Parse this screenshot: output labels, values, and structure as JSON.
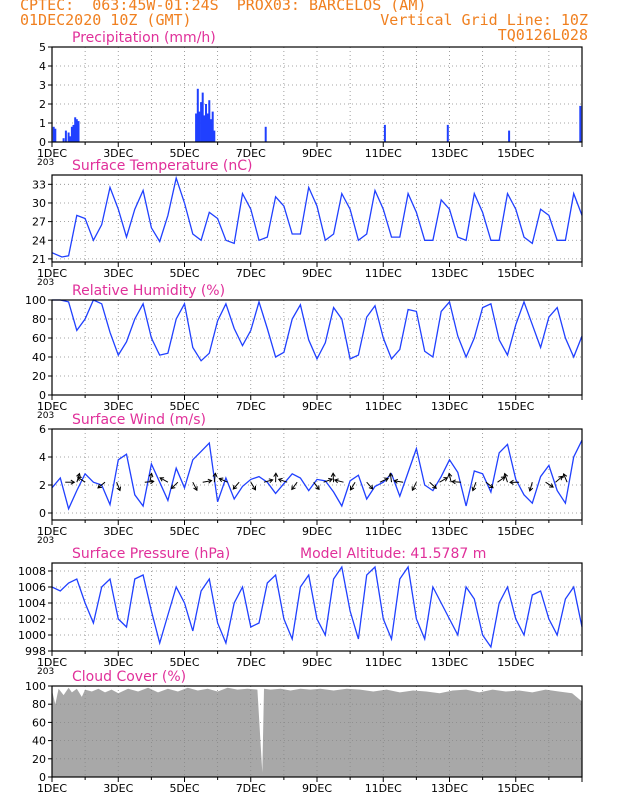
{
  "header": {
    "line1_left": "CPTEC:  063:45W-01:24S  PROX03: BARCELOS (AM)",
    "line2_left": "01DEC2020 10Z (GMT)",
    "line2_right": "Vertical Grid Line: 10Z",
    "line3_right": "TQ0126L028",
    "color": "#f08020"
  },
  "colors": {
    "line": "#2040ff",
    "bar": "#2040ff",
    "cloud": "#a8a8a8",
    "title": "#e0309a",
    "vgrid": "#ff8000"
  },
  "x_tick_labels": [
    "1DEC",
    "3DEC",
    "5DEC",
    "7DEC",
    "9DEC",
    "11DEC",
    "13DEC",
    "15DEC"
  ],
  "x_stub_label": "203",
  "chart_data": [
    {
      "id": "precip",
      "type": "bar",
      "title": "Precipitation (mm/h)",
      "ylim": [
        0,
        5
      ],
      "yticks": [
        0,
        1,
        2,
        3,
        4,
        5
      ],
      "x_unit": "days since 01DEC 00Z",
      "x": [
        0.05,
        0.1,
        0.35,
        0.42,
        0.5,
        0.55,
        0.6,
        0.65,
        0.7,
        0.75,
        0.8,
        4.35,
        4.4,
        4.45,
        4.5,
        4.55,
        4.6,
        4.65,
        4.7,
        4.75,
        4.8,
        4.85,
        4.9,
        6.45,
        10.05,
        11.95,
        13.8,
        15.95
      ],
      "values": [
        0.8,
        0.7,
        0.2,
        0.6,
        0.5,
        0.3,
        0.8,
        0.9,
        1.3,
        1.2,
        1.1,
        1.5,
        2.8,
        1.6,
        2.1,
        2.6,
        1.4,
        2.0,
        1.5,
        2.2,
        1.2,
        1.6,
        0.6,
        0.8,
        0.9,
        0.9,
        0.6,
        1.9
      ]
    },
    {
      "id": "temp",
      "type": "line",
      "title": "Surface Temperature (nC)",
      "ylim": [
        20.5,
        34.5
      ],
      "yticks": [
        21,
        24,
        27,
        30,
        33
      ],
      "x": [
        0,
        0.3,
        0.5,
        0.75,
        1.0,
        1.25,
        1.5,
        1.75,
        2.0,
        2.25,
        2.5,
        2.75,
        3.0,
        3.25,
        3.5,
        3.75,
        4.0,
        4.25,
        4.5,
        4.75,
        5.0,
        5.25,
        5.5,
        5.75,
        6.0,
        6.25,
        6.5,
        6.75,
        7.0,
        7.25,
        7.5,
        7.75,
        8.0,
        8.25,
        8.5,
        8.75,
        9.0,
        9.25,
        9.5,
        9.75,
        10.0,
        10.25,
        10.5,
        10.75,
        11.0,
        11.25,
        11.5,
        11.75,
        12.0,
        12.25,
        12.5,
        12.75,
        13.0,
        13.25,
        13.5,
        13.75,
        14.0,
        14.25,
        14.5,
        14.75,
        15.0,
        15.25,
        15.5,
        15.75,
        16.0
      ],
      "values": [
        22,
        21.3,
        21.5,
        28,
        27.5,
        24,
        26.5,
        32.5,
        29,
        24.5,
        29,
        32,
        26,
        23.8,
        28,
        34,
        30,
        25,
        24,
        28.5,
        27.5,
        24,
        23.5,
        31.5,
        29,
        24,
        24.5,
        31,
        29.5,
        25,
        25,
        32.5,
        29.5,
        24,
        25,
        31.5,
        29,
        24,
        25,
        32,
        29,
        24.5,
        24.5,
        31.5,
        28.5,
        24,
        24,
        30.5,
        29,
        24.5,
        24,
        31.5,
        28.5,
        24,
        24,
        31.5,
        29,
        24.5,
        23.5,
        29,
        28,
        24,
        24,
        31.5,
        28
      ]
    },
    {
      "id": "rh",
      "type": "line",
      "title": "Relative Humidity (%)",
      "ylim": [
        0,
        100
      ],
      "yticks": [
        0,
        20,
        40,
        60,
        80,
        100
      ],
      "x": [
        0,
        0.25,
        0.5,
        0.75,
        1.0,
        1.25,
        1.5,
        1.75,
        2.0,
        2.25,
        2.5,
        2.75,
        3.0,
        3.25,
        3.5,
        3.75,
        4.0,
        4.25,
        4.5,
        4.75,
        5.0,
        5.25,
        5.5,
        5.75,
        6.0,
        6.25,
        6.5,
        6.75,
        7.0,
        7.25,
        7.5,
        7.75,
        8.0,
        8.25,
        8.5,
        8.75,
        9.0,
        9.25,
        9.5,
        9.75,
        10.0,
        10.25,
        10.5,
        10.75,
        11.0,
        11.25,
        11.5,
        11.75,
        12.0,
        12.25,
        12.5,
        12.75,
        13.0,
        13.25,
        13.5,
        13.75,
        14.0,
        14.25,
        14.5,
        14.75,
        15.0,
        15.25,
        15.5,
        15.75,
        16.0
      ],
      "values": [
        100,
        100,
        98,
        68,
        80,
        100,
        96,
        66,
        42,
        56,
        80,
        96,
        60,
        42,
        44,
        80,
        96,
        50,
        36,
        44,
        78,
        96,
        70,
        52,
        68,
        98,
        70,
        40,
        45,
        80,
        95,
        58,
        38,
        55,
        92,
        80,
        38,
        42,
        82,
        94,
        60,
        38,
        48,
        90,
        88,
        46,
        40,
        88,
        98,
        62,
        40,
        60,
        92,
        96,
        58,
        42,
        74,
        98,
        74,
        50,
        82,
        92,
        60,
        40,
        62
      ]
    },
    {
      "id": "wind",
      "type": "line",
      "title": "Surface Wind (m/s)",
      "ylim": [
        -0.5,
        6
      ],
      "yticks": [
        0,
        2,
        4,
        6
      ],
      "x": [
        0,
        0.25,
        0.5,
        0.75,
        1.0,
        1.25,
        1.5,
        1.75,
        2.0,
        2.25,
        2.5,
        2.75,
        3.0,
        3.25,
        3.5,
        3.75,
        4.0,
        4.25,
        4.5,
        4.75,
        5.0,
        5.25,
        5.5,
        5.75,
        6.0,
        6.25,
        6.5,
        6.75,
        7.0,
        7.25,
        7.5,
        7.75,
        8.0,
        8.25,
        8.5,
        8.75,
        9.0,
        9.25,
        9.5,
        9.75,
        10.0,
        10.25,
        10.5,
        10.75,
        11.0,
        11.25,
        11.5,
        11.75,
        12.0,
        12.25,
        12.5,
        12.75,
        13.0,
        13.25,
        13.5,
        13.75,
        14.0,
        14.25,
        14.5,
        14.75,
        15.0,
        15.25,
        15.5,
        15.75,
        16.0
      ],
      "values": [
        1.8,
        2.5,
        0.3,
        1.6,
        2.8,
        2.2,
        2.0,
        0.6,
        3.8,
        4.2,
        1.3,
        0.5,
        3.5,
        2.2,
        0.9,
        3.2,
        1.8,
        3.8,
        4.4,
        5.0,
        0.8,
        2.5,
        1.0,
        1.9,
        2.4,
        2.6,
        2.2,
        1.4,
        2.1,
        2.8,
        2.5,
        1.6,
        2.4,
        2.3,
        1.5,
        0.5,
        2.3,
        2.7,
        1.0,
        1.9,
        2.2,
        2.8,
        1.2,
        2.9,
        4.6,
        2.0,
        1.6,
        2.6,
        3.8,
        2.9,
        0.5,
        3.0,
        2.8,
        1.5,
        4.3,
        4.9,
        2.4,
        1.3,
        0.7,
        2.6,
        3.4,
        1.6,
        0.7,
        4.0,
        5.2
      ],
      "arrow_x": [
        0.4,
        0.75,
        1.0,
        1.6,
        1.95,
        2.8,
        2.95,
        3.5,
        3.8,
        4.25,
        4.55,
        4.9,
        5.3,
        5.65,
        6.0,
        6.4,
        6.75,
        7.1,
        7.4,
        7.9,
        8.2,
        8.5,
        8.8,
        9.15,
        9.5,
        9.9,
        10.25,
        10.6,
        11.0,
        11.4,
        11.7,
        12.05,
        12.35,
        12.8,
        13.1,
        13.45,
        13.75,
        14.1,
        14.5,
        14.9,
        15.2,
        15.55
      ]
    },
    {
      "id": "pres",
      "type": "line",
      "title": "Surface Pressure (hPa)",
      "annotation": "Model Altitude: 41.5787 m",
      "ylim": [
        998,
        1009
      ],
      "yticks": [
        998,
        1000,
        1002,
        1004,
        1006,
        1008
      ],
      "x": [
        0,
        0.25,
        0.5,
        0.75,
        1.0,
        1.25,
        1.5,
        1.75,
        2.0,
        2.25,
        2.5,
        2.75,
        3.0,
        3.25,
        3.5,
        3.75,
        4.0,
        4.25,
        4.5,
        4.75,
        5.0,
        5.25,
        5.5,
        5.75,
        6.0,
        6.25,
        6.5,
        6.75,
        7.0,
        7.25,
        7.5,
        7.75,
        8.0,
        8.25,
        8.5,
        8.75,
        9.0,
        9.25,
        9.5,
        9.75,
        10.0,
        10.25,
        10.5,
        10.75,
        11.0,
        11.25,
        11.5,
        11.75,
        12.0,
        12.25,
        12.5,
        12.75,
        13.0,
        13.25,
        13.5,
        13.75,
        14.0,
        14.25,
        14.5,
        14.75,
        15.0,
        15.25,
        15.5,
        15.75,
        16.0
      ],
      "values": [
        1006,
        1005.5,
        1006.5,
        1007,
        1004,
        1001.5,
        1006,
        1007,
        1002,
        1001,
        1007,
        1007.5,
        1003,
        999,
        1002.5,
        1006,
        1004,
        1000.5,
        1005.5,
        1007,
        1001.5,
        999,
        1004,
        1006,
        1001,
        1001.5,
        1006.5,
        1007.5,
        1002,
        999.5,
        1006,
        1007.5,
        1002,
        1000,
        1007,
        1008.5,
        1003,
        999.5,
        1007.5,
        1008.5,
        1002,
        999.5,
        1007,
        1008.5,
        1002,
        999.5,
        1006,
        1004,
        1002,
        1000,
        1006,
        1004.5,
        1000,
        998.5,
        1004,
        1006,
        1002,
        1000,
        1005,
        1005.5,
        1002,
        1000,
        1004.5,
        1006,
        1001
      ]
    },
    {
      "id": "cloud",
      "type": "area",
      "title": "Cloud Cover (%)",
      "ylim": [
        0,
        100
      ],
      "yticks": [
        0,
        20,
        40,
        60,
        80,
        100
      ],
      "x": [
        0,
        0.1,
        0.2,
        0.35,
        0.5,
        0.6,
        0.75,
        0.9,
        1.0,
        1.2,
        1.4,
        1.6,
        1.8,
        2.0,
        2.3,
        2.6,
        2.9,
        3.2,
        3.5,
        3.8,
        4.1,
        4.4,
        4.7,
        5.0,
        5.3,
        5.6,
        5.9,
        6.2,
        6.35,
        6.4,
        6.6,
        6.9,
        7.2,
        7.5,
        7.8,
        8.1,
        8.5,
        8.9,
        9.3,
        9.7,
        10.1,
        10.5,
        10.9,
        11.3,
        11.7,
        12.1,
        12.5,
        12.9,
        13.3,
        13.7,
        14.1,
        14.5,
        14.9,
        15.3,
        15.7,
        16.0
      ],
      "values": [
        95,
        80,
        97,
        90,
        98,
        93,
        97,
        88,
        96,
        94,
        97,
        93,
        96,
        92,
        97,
        94,
        98,
        93,
        97,
        94,
        98,
        95,
        97,
        94,
        98,
        96,
        97,
        96,
        5,
        97,
        96,
        97,
        95,
        97,
        96,
        97,
        95,
        97,
        96,
        94,
        96,
        93,
        95,
        94,
        92,
        95,
        96,
        93,
        96,
        94,
        95,
        93,
        96,
        94,
        92,
        83
      ]
    }
  ]
}
